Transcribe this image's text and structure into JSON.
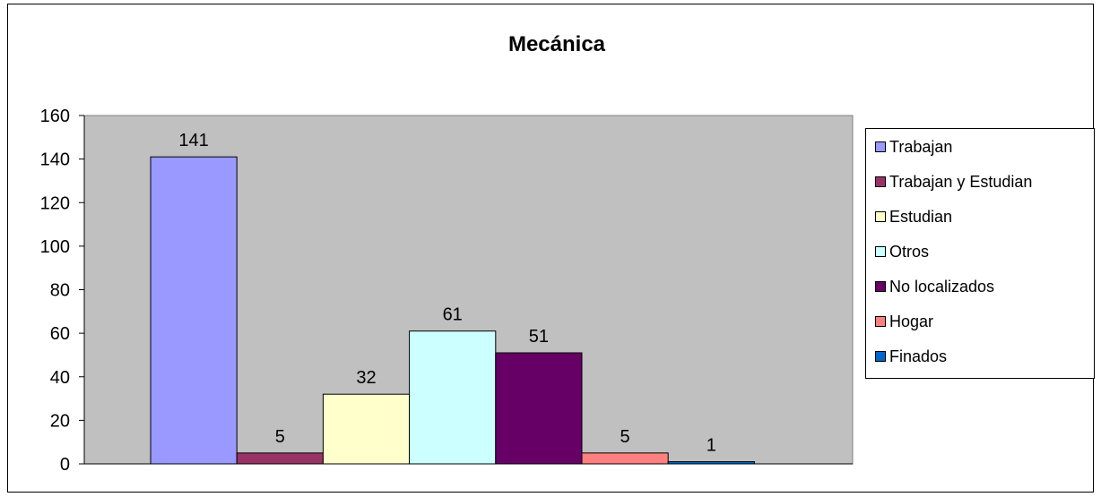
{
  "chart_data": {
    "type": "bar",
    "title": "Mecánica",
    "xlabel": "",
    "ylabel": "",
    "ylim": [
      0,
      160
    ],
    "yticks": [
      0,
      20,
      40,
      60,
      80,
      100,
      120,
      140,
      160
    ],
    "grid": false,
    "plot_background": "#C0C0C0",
    "legend_position": "right",
    "series": [
      {
        "name": "Trabajan",
        "value": 141,
        "color": "#9999FF"
      },
      {
        "name": "Trabajan y Estudian",
        "value": 5,
        "color": "#993366"
      },
      {
        "name": "Estudian",
        "value": 32,
        "color": "#FFFFCC"
      },
      {
        "name": "Otros",
        "value": 61,
        "color": "#CCFFFF"
      },
      {
        "name": "No localizados",
        "value": 51,
        "color": "#660066"
      },
      {
        "name": "Hogar",
        "value": 5,
        "color": "#FF8080"
      },
      {
        "name": "Finados",
        "value": 1,
        "color": "#0066CC"
      }
    ]
  }
}
